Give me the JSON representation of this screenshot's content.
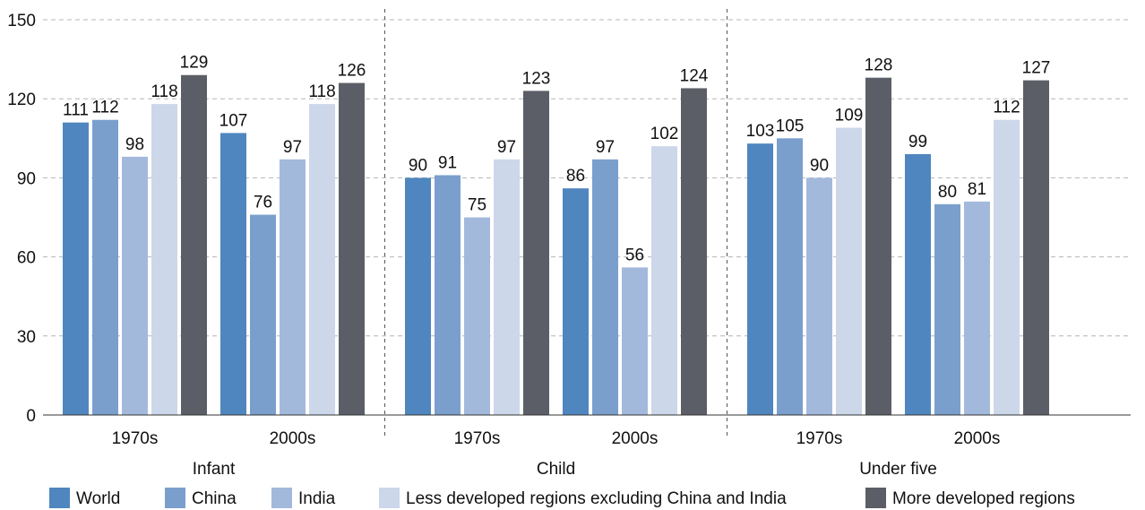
{
  "chart_data": {
    "type": "bar",
    "title": "",
    "xlabel": "",
    "ylabel": "",
    "ylim": [
      0,
      150
    ],
    "yticks": [
      0,
      30,
      60,
      90,
      120,
      150
    ],
    "grid": true,
    "legend_position": "bottom",
    "groups": [
      {
        "label": "Infant",
        "subgroups": [
          {
            "label": "1970s",
            "values": [
              111,
              112,
              98,
              118,
              129
            ]
          },
          {
            "label": "2000s",
            "values": [
              107,
              76,
              97,
              118,
              126
            ]
          }
        ]
      },
      {
        "label": "Child",
        "subgroups": [
          {
            "label": "1970s",
            "values": [
              90,
              91,
              75,
              97,
              123
            ]
          },
          {
            "label": "2000s",
            "values": [
              86,
              97,
              56,
              102,
              124
            ]
          }
        ]
      },
      {
        "label": "Under five",
        "subgroups": [
          {
            "label": "1970s",
            "values": [
              103,
              105,
              90,
              109,
              128
            ]
          },
          {
            "label": "2000s",
            "values": [
              99,
              80,
              81,
              112,
              127
            ]
          }
        ]
      }
    ],
    "series": [
      {
        "name": "World",
        "color": "#4f86bf"
      },
      {
        "name": "China",
        "color": "#7b9fcd"
      },
      {
        "name": "India",
        "color": "#a3b9dc"
      },
      {
        "name": "Less developed regions excluding China and India",
        "color": "#ccd7ea"
      },
      {
        "name": "More developed regions",
        "color": "#5b5e66"
      }
    ]
  }
}
